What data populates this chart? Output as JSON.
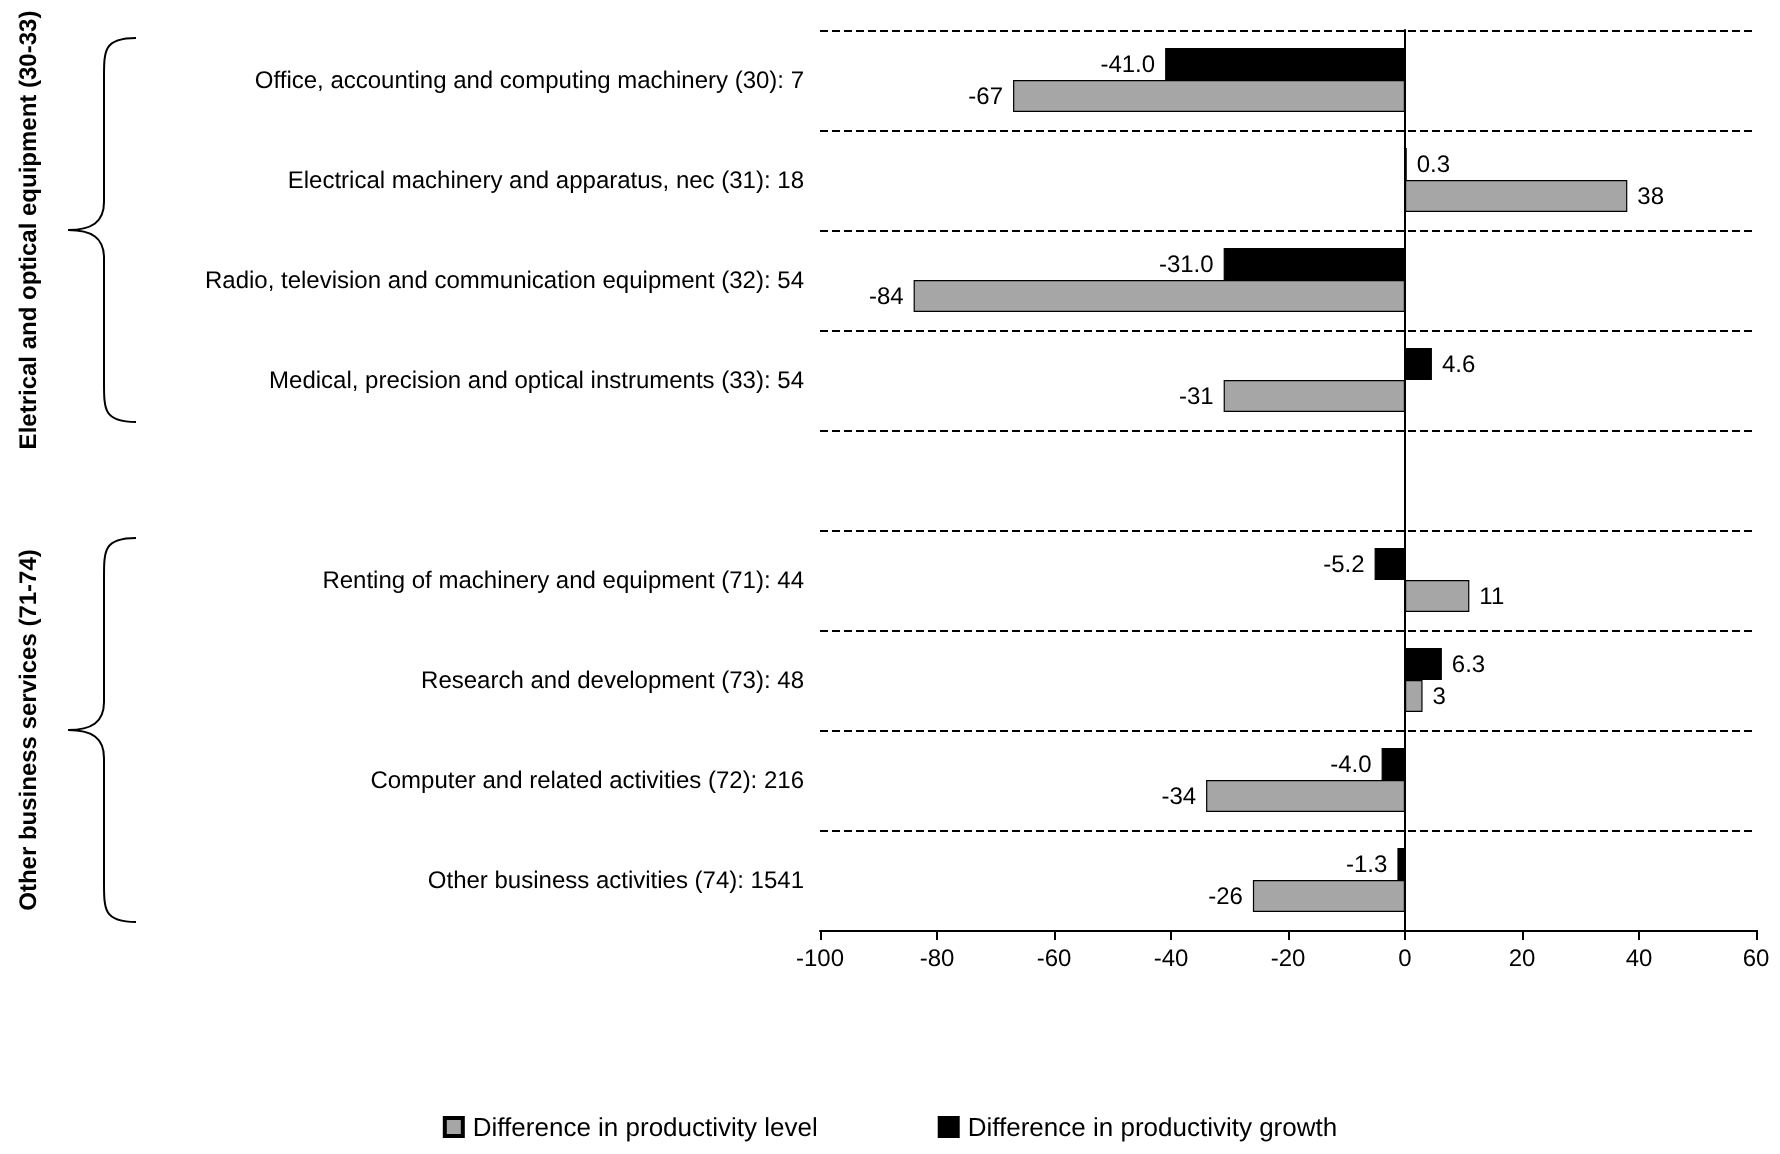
{
  "chart_data": {
    "type": "bar",
    "orientation": "horizontal",
    "categories": [
      "Office, accounting and computing machinery (30): 7",
      "Electrical machinery and apparatus, nec (31): 18",
      "Radio, television and communication equipment (32): 54",
      "Medical, precision and optical instruments (33): 54",
      null,
      "Renting of machinery and equipment (71): 44",
      "Research and development (73): 48",
      "Computer and related activities (72): 216",
      "Other business activities (74): 1541"
    ],
    "series": [
      {
        "name": "Difference in productivity growth",
        "color": "#000000",
        "values": [
          -41.0,
          0.3,
          -31.0,
          4.6,
          null,
          -5.2,
          6.3,
          -4.0,
          -1.3
        ],
        "value_labels": [
          "-41.0",
          "0.3",
          "-31.0",
          "4.6",
          null,
          "-5.2",
          "6.3",
          "-4.0",
          "-1.3"
        ]
      },
      {
        "name": "Difference in productivity level",
        "color": "#a6a6a6",
        "values": [
          -67,
          38,
          -84,
          -31,
          null,
          11,
          3,
          -34,
          -26
        ],
        "value_labels": [
          "-67",
          "38",
          "-84",
          "-31",
          null,
          "11",
          "3",
          "-34",
          "-26"
        ]
      }
    ],
    "xlim": [
      -100,
      60
    ],
    "xticks": [
      -100,
      -80,
      -60,
      -40,
      -20,
      0,
      20,
      40,
      60
    ],
    "grid": "y",
    "legend": "bottom",
    "annotations": [
      "Eletrical and optical equipment (30-33)",
      "Other business services (71-74)"
    ]
  }
}
